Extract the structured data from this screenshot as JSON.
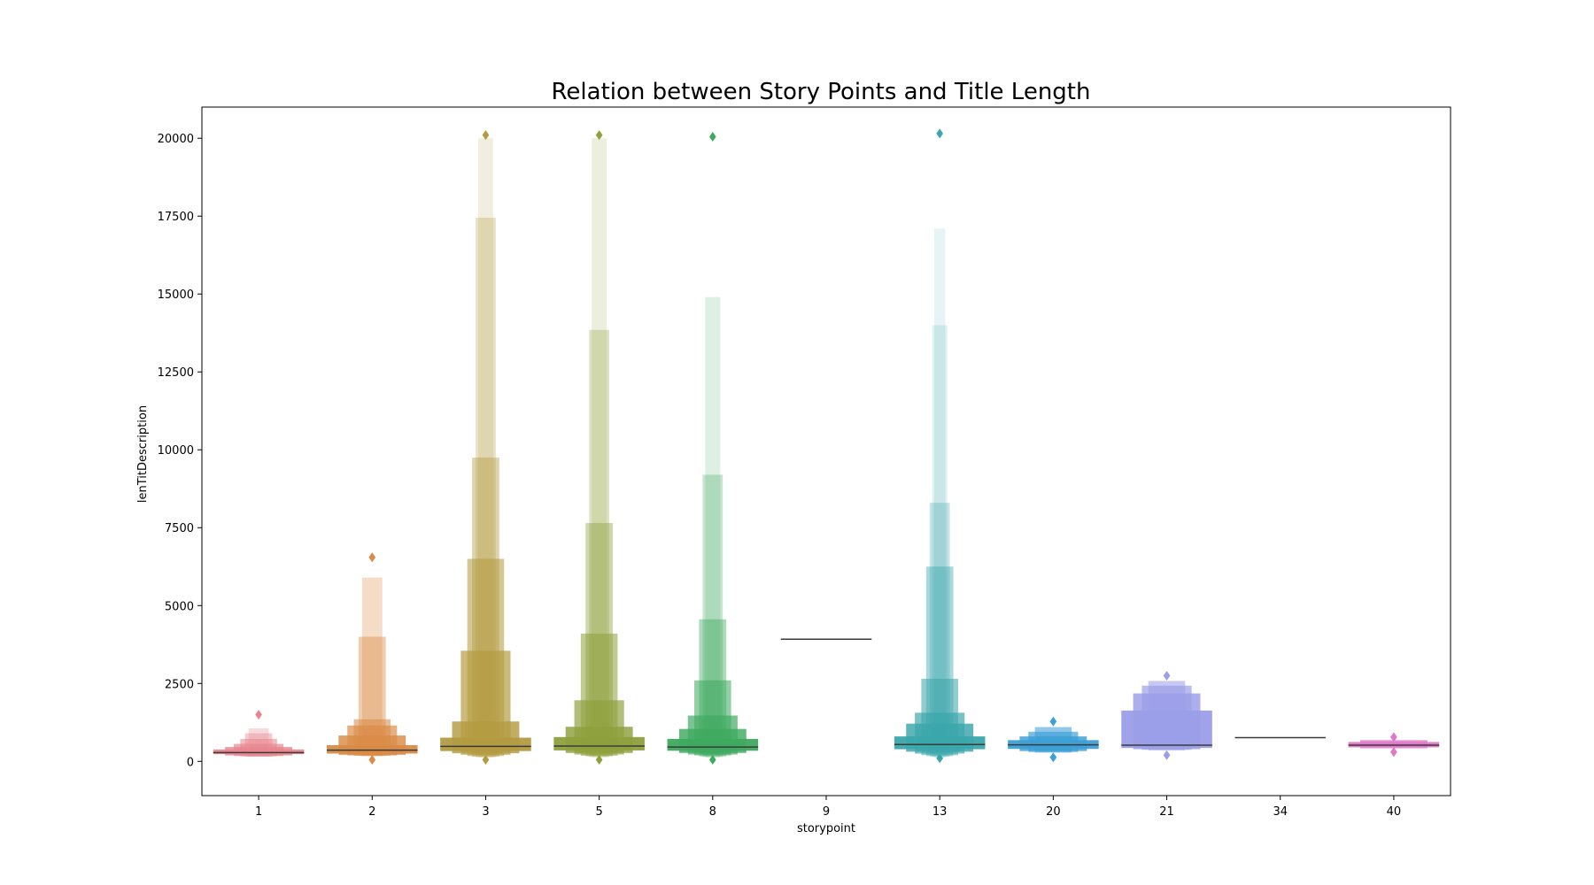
{
  "chart_data": {
    "type": "boxen",
    "title": "Relation between Story Points and Title Length",
    "xlabel": "storypoint",
    "ylabel": "lenTitDescription",
    "categories": [
      "1",
      "2",
      "3",
      "5",
      "8",
      "9",
      "13",
      "20",
      "21",
      "34",
      "40"
    ],
    "ylim": [
      -1100,
      21000
    ],
    "yticks": [
      0,
      2500,
      5000,
      7500,
      10000,
      12500,
      15000,
      17500,
      20000
    ],
    "grid": false,
    "legend": "none",
    "series": [
      {
        "category": "1",
        "color": "#e8868f",
        "median": 280,
        "levels": [
          [
            230,
            380
          ],
          [
            190,
            460
          ],
          [
            170,
            560
          ],
          [
            160,
            720
          ],
          [
            150,
            900
          ],
          [
            150,
            1060
          ]
        ],
        "outliers": [
          1500
        ]
      },
      {
        "category": "2",
        "color": "#d98b47",
        "median": 360,
        "levels": [
          [
            250,
            520
          ],
          [
            210,
            830
          ],
          [
            190,
            1150
          ],
          [
            180,
            1350
          ],
          [
            170,
            4000
          ],
          [
            160,
            5900
          ]
        ],
        "outliers": [
          6550,
          50
        ]
      },
      {
        "category": "3",
        "color": "#b39b41",
        "median": 480,
        "levels": [
          [
            330,
            760
          ],
          [
            260,
            1280
          ],
          [
            210,
            3550
          ],
          [
            170,
            6500
          ],
          [
            150,
            9750
          ],
          [
            130,
            17450
          ],
          [
            120,
            20000
          ]
        ],
        "outliers": [
          20100,
          50
        ]
      },
      {
        "category": "5",
        "color": "#8ea03d",
        "median": 490,
        "levels": [
          [
            350,
            780
          ],
          [
            270,
            1110
          ],
          [
            220,
            1960
          ],
          [
            180,
            4100
          ],
          [
            160,
            7650
          ],
          [
            140,
            13850
          ],
          [
            130,
            20000
          ]
        ],
        "outliers": [
          20100,
          50
        ]
      },
      {
        "category": "8",
        "color": "#3ea95f",
        "median": 460,
        "levels": [
          [
            340,
            720
          ],
          [
            270,
            1040
          ],
          [
            220,
            1470
          ],
          [
            190,
            2600
          ],
          [
            160,
            4560
          ],
          [
            140,
            9200
          ],
          [
            120,
            14900
          ]
        ],
        "outliers": [
          20050,
          50
        ]
      },
      {
        "category": "9",
        "color": "#4a4a4a",
        "median": 3920,
        "levels": [],
        "outliers": []
      },
      {
        "category": "13",
        "color": "#3aa6ab",
        "median": 540,
        "levels": [
          [
            390,
            800
          ],
          [
            310,
            1210
          ],
          [
            250,
            1560
          ],
          [
            200,
            2650
          ],
          [
            170,
            6250
          ],
          [
            150,
            8300
          ],
          [
            130,
            14000
          ],
          [
            120,
            17100
          ]
        ],
        "outliers": [
          20150,
          100
        ]
      },
      {
        "category": "20",
        "color": "#3c9fd6",
        "median": 530,
        "levels": [
          [
            400,
            680
          ],
          [
            330,
            800
          ],
          [
            300,
            950
          ],
          [
            280,
            1100
          ]
        ],
        "outliers": [
          1280,
          130
        ]
      },
      {
        "category": "21",
        "color": "#9b9ee8",
        "median": 520,
        "levels": [
          [
            430,
            1630
          ],
          [
            390,
            2180
          ],
          [
            370,
            2430
          ],
          [
            350,
            2580
          ]
        ],
        "outliers": [
          2750,
          200
        ]
      },
      {
        "category": "34",
        "color": "#4a4a4a",
        "median": 760,
        "levels": [],
        "outliers": []
      },
      {
        "category": "40",
        "color": "#e078c8",
        "median": 520,
        "levels": [
          [
            450,
            620
          ],
          [
            420,
            680
          ]
        ],
        "outliers": [
          780,
          300
        ]
      }
    ]
  }
}
